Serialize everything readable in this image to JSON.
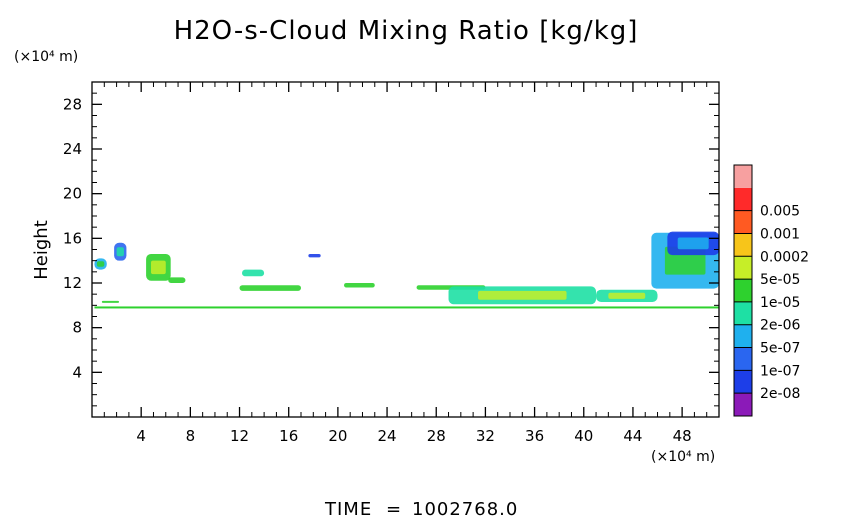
{
  "chart_data": {
    "type": "heatmap",
    "title": "H2O-s-Cloud Mixing Ratio [kg/kg]",
    "xlabel": "",
    "ylabel": "Height",
    "x_unit": "(×10⁴ m)",
    "y_unit": "(×10⁴ m)",
    "xlim": [
      0,
      51
    ],
    "ylim": [
      0,
      30
    ],
    "x_ticks": [
      4,
      8,
      12,
      16,
      20,
      24,
      28,
      32,
      36,
      40,
      44,
      48
    ],
    "y_ticks": [
      4,
      8,
      12,
      16,
      20,
      24,
      28
    ],
    "grid": false,
    "colorbar": {
      "levels": [
        "2e-08",
        "1e-07",
        "5e-07",
        "2e-06",
        "1e-05",
        "5e-05",
        "0.0002",
        "0.001",
        "0.005"
      ],
      "colors": [
        "#8b1ab8",
        "#1d3ee8",
        "#2a66f0",
        "#1fb0ee",
        "#1ee0a4",
        "#2ed12e",
        "#c6ee28",
        "#f7c51a",
        "#ff5a22",
        "#ff2a2a",
        "#f7a0a0"
      ]
    },
    "features": [
      {
        "x": [
          0.2,
          51
        ],
        "y": [
          9.8,
          9.9
        ],
        "class": 5
      },
      {
        "x": [
          0.8,
          2.2
        ],
        "y": [
          10.3,
          10.4
        ],
        "class": 5
      },
      {
        "x": [
          0.2,
          1.2
        ],
        "y": [
          13.2,
          14.2
        ],
        "class": 3
      },
      {
        "x": [
          1.8,
          2.8
        ],
        "y": [
          14.0,
          15.6
        ],
        "class": 2
      },
      {
        "x": [
          4.4,
          6.4
        ],
        "y": [
          12.2,
          14.6
        ],
        "class": 5
      },
      {
        "x": [
          6.2,
          7.6
        ],
        "y": [
          12.0,
          12.5
        ],
        "class": 5
      },
      {
        "x": [
          12.2,
          14.0
        ],
        "y": [
          12.6,
          13.2
        ],
        "class": 4
      },
      {
        "x": [
          12.0,
          17.0
        ],
        "y": [
          11.3,
          11.8
        ],
        "class": 5
      },
      {
        "x": [
          17.6,
          18.6
        ],
        "y": [
          14.3,
          14.6
        ],
        "class": 1
      },
      {
        "x": [
          20.5,
          23.0
        ],
        "y": [
          11.6,
          12.0
        ],
        "class": 5
      },
      {
        "x": [
          26.4,
          32.0
        ],
        "y": [
          11.4,
          11.8
        ],
        "class": 5
      },
      {
        "x": [
          29.0,
          41.0
        ],
        "y": [
          10.1,
          11.7
        ],
        "class": 4
      },
      {
        "x": [
          41.0,
          46.0
        ],
        "y": [
          10.3,
          11.4
        ],
        "class": 4
      },
      {
        "x": [
          45.5,
          51.0
        ],
        "y": [
          11.5,
          16.5
        ],
        "class": 3
      },
      {
        "x": [
          46.8,
          51.0
        ],
        "y": [
          14.5,
          16.6
        ],
        "class": 1
      }
    ]
  },
  "footer": {
    "label": "TIME",
    "equals": "=",
    "value": "1002768.0"
  }
}
